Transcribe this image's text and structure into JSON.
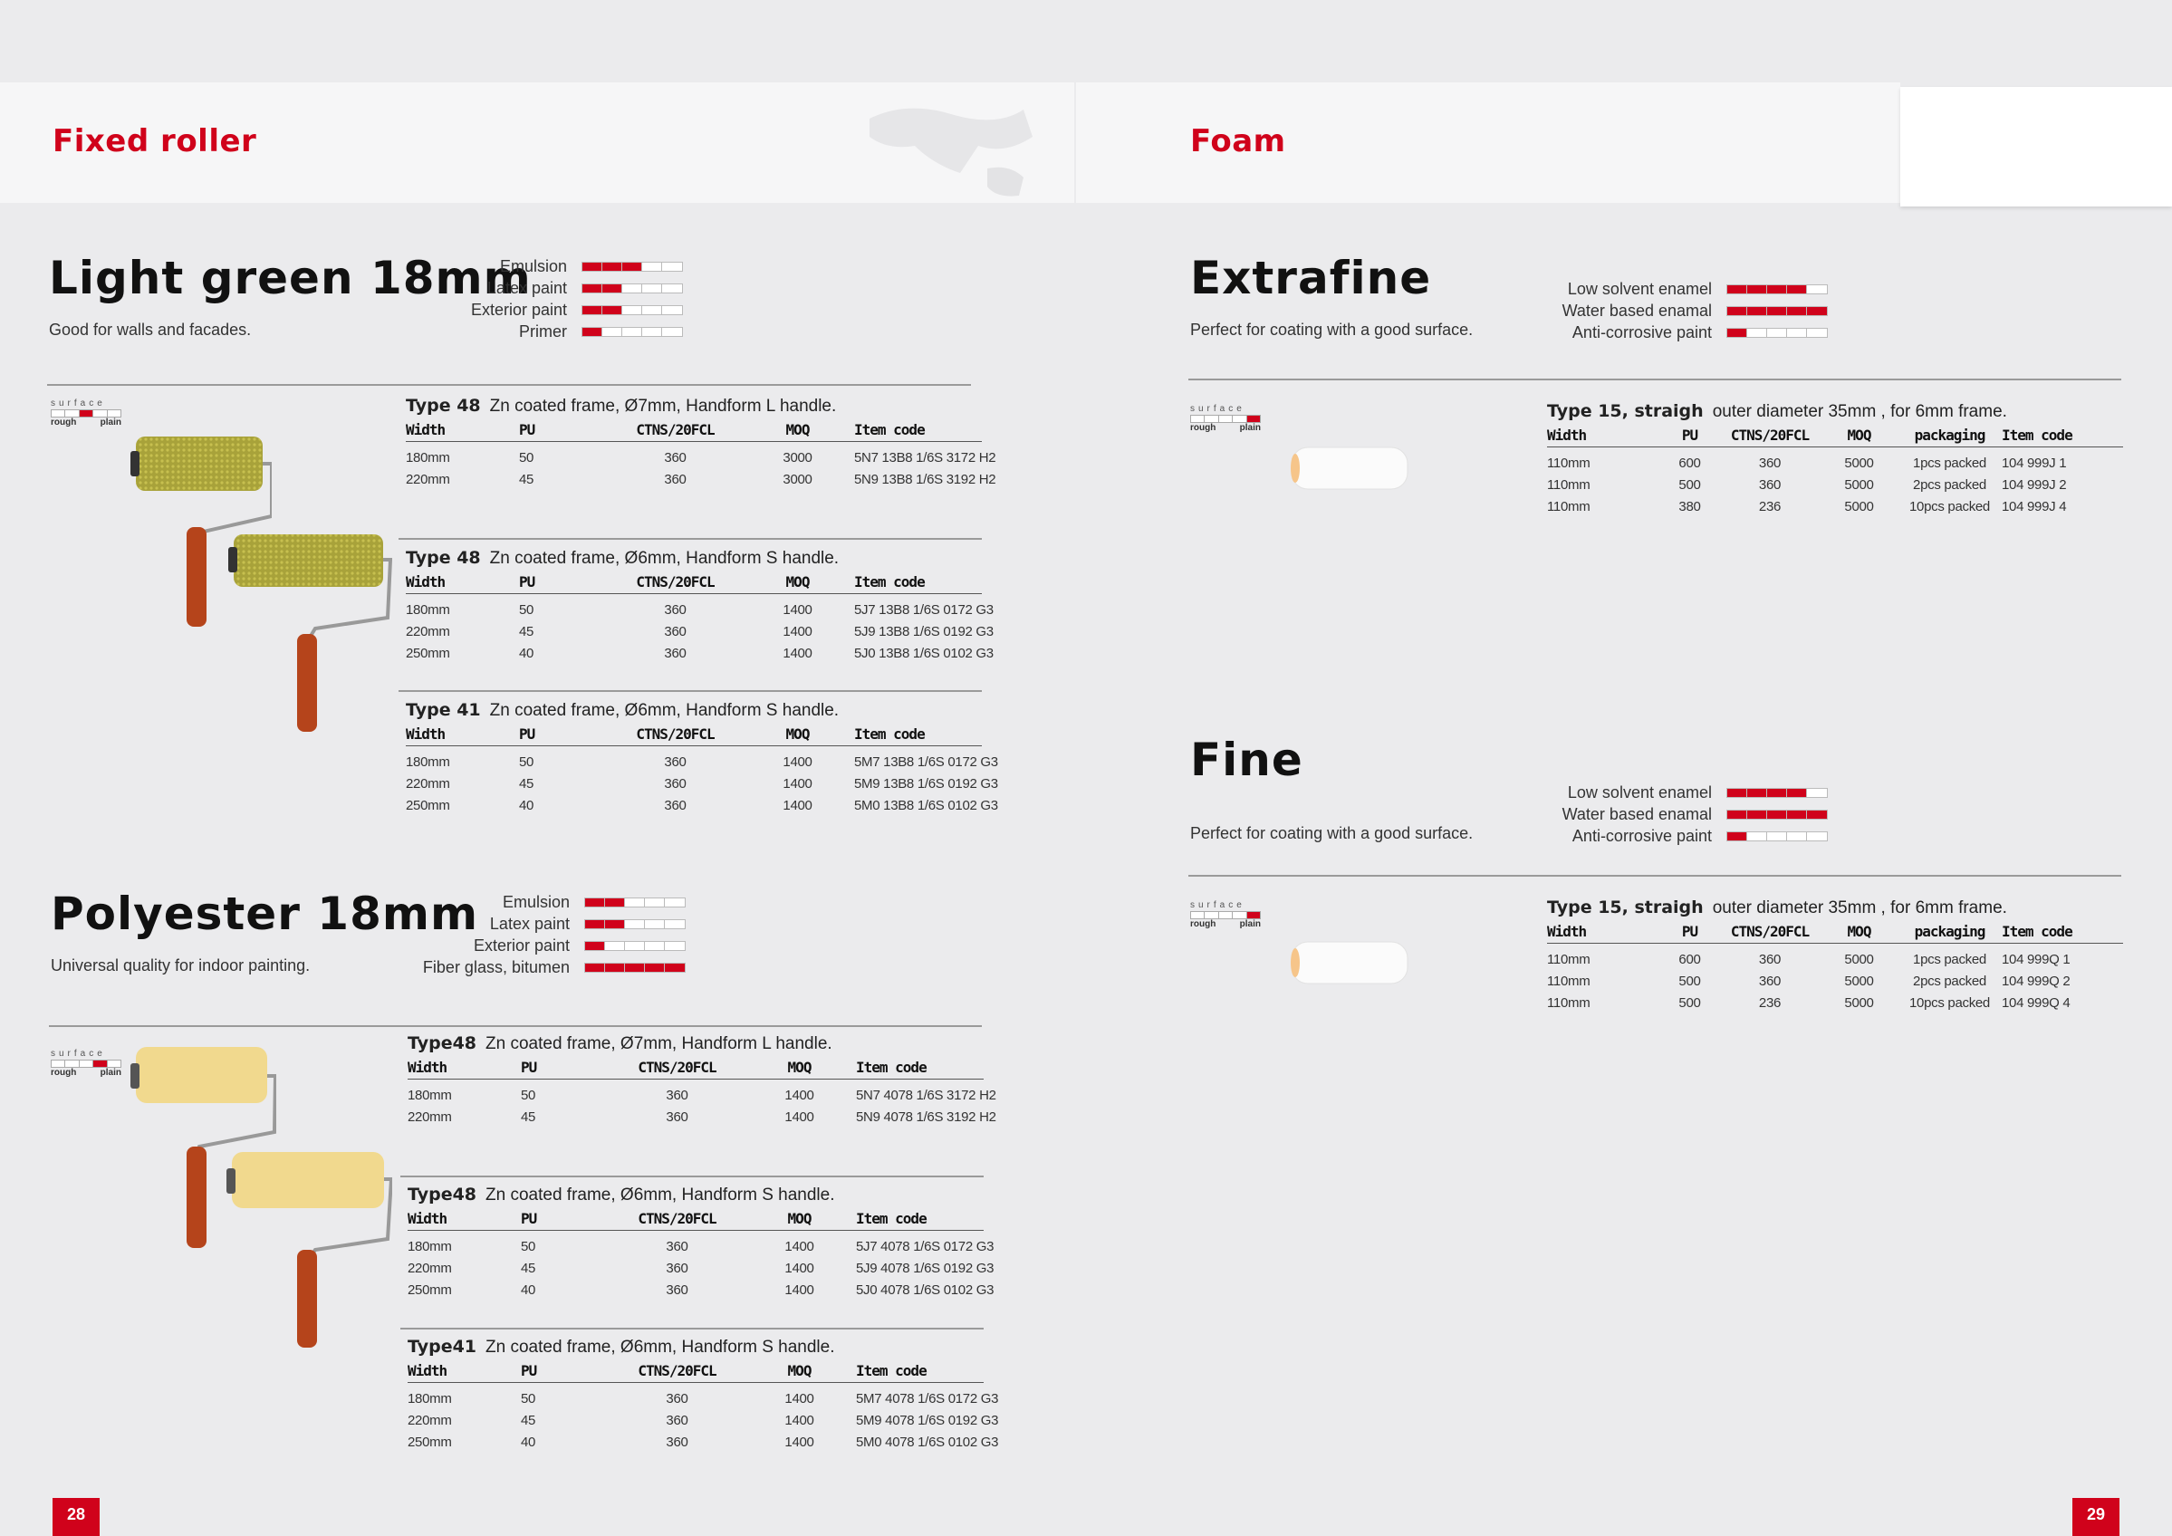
{
  "left_page": {
    "section": "Fixed roller",
    "page_number": "28",
    "products": [
      {
        "name": "Light green 18mm",
        "description": "Good for walls and facades.",
        "ratings": [
          {
            "label": "Emulsion",
            "level": 3
          },
          {
            "label": "Latex paint",
            "level": 2
          },
          {
            "label": "Exterior paint",
            "level": 2
          },
          {
            "label": "Primer",
            "level": 1
          }
        ],
        "surface": {
          "label": "surface",
          "rough": "rough",
          "plain": "plain",
          "level": 3
        },
        "tables": [
          {
            "type": "Type 48",
            "spec": "Zn coated frame, Ø7mm, Handform L handle.",
            "columns": [
              "Width",
              "PU",
              "CTNS/20FCL",
              "MOQ",
              "Item code"
            ],
            "rows": [
              [
                "180mm",
                "50",
                "360",
                "3000",
                "5N7 13B8 1/6S 3172 H2"
              ],
              [
                "220mm",
                "45",
                "360",
                "3000",
                "5N9 13B8 1/6S 3192 H2"
              ]
            ]
          },
          {
            "type": "Type 48",
            "spec": "Zn coated frame, Ø6mm, Handform S handle.",
            "columns": [
              "Width",
              "PU",
              "CTNS/20FCL",
              "MOQ",
              "Item code"
            ],
            "rows": [
              [
                "180mm",
                "50",
                "360",
                "1400",
                "5J7 13B8 1/6S 0172 G3"
              ],
              [
                "220mm",
                "45",
                "360",
                "1400",
                "5J9 13B8 1/6S 0192 G3"
              ],
              [
                "250mm",
                "40",
                "360",
                "1400",
                "5J0 13B8 1/6S 0102 G3"
              ]
            ]
          },
          {
            "type": "Type 41",
            "spec": "Zn coated frame, Ø6mm, Handform S handle.",
            "columns": [
              "Width",
              "PU",
              "CTNS/20FCL",
              "MOQ",
              "Item code"
            ],
            "rows": [
              [
                "180mm",
                "50",
                "360",
                "1400",
                "5M7 13B8 1/6S 0172 G3"
              ],
              [
                "220mm",
                "45",
                "360",
                "1400",
                "5M9 13B8 1/6S 0192 G3"
              ],
              [
                "250mm",
                "40",
                "360",
                "1400",
                "5M0 13B8 1/6S 0102 G3"
              ]
            ]
          }
        ]
      },
      {
        "name": "Polyester 18mm",
        "description": "Universal quality for indoor painting.",
        "ratings": [
          {
            "label": "Emulsion",
            "level": 2
          },
          {
            "label": "Latex paint",
            "level": 2
          },
          {
            "label": "Exterior paint",
            "level": 1
          },
          {
            "label": "Fiber glass, bitumen",
            "level": 5
          }
        ],
        "surface": {
          "label": "surface",
          "rough": "rough",
          "plain": "plain",
          "level": 4
        },
        "tables": [
          {
            "type": "Type48",
            "spec": "Zn coated frame, Ø7mm, Handform L handle.",
            "columns": [
              "Width",
              "PU",
              "CTNS/20FCL",
              "MOQ",
              "Item code"
            ],
            "rows": [
              [
                "180mm",
                "50",
                "360",
                "1400",
                "5N7 4078 1/6S 3172 H2"
              ],
              [
                "220mm",
                "45",
                "360",
                "1400",
                "5N9 4078 1/6S 3192 H2"
              ]
            ]
          },
          {
            "type": "Type48",
            "spec": "Zn coated frame, Ø6mm, Handform S handle.",
            "columns": [
              "Width",
              "PU",
              "CTNS/20FCL",
              "MOQ",
              "Item code"
            ],
            "rows": [
              [
                "180mm",
                "50",
                "360",
                "1400",
                "5J7 4078 1/6S 0172 G3"
              ],
              [
                "220mm",
                "45",
                "360",
                "1400",
                "5J9 4078 1/6S 0192 G3"
              ],
              [
                "250mm",
                "40",
                "360",
                "1400",
                "5J0 4078 1/6S 0102 G3"
              ]
            ]
          },
          {
            "type": "Type41",
            "spec": "Zn coated frame, Ø6mm, Handform S handle.",
            "columns": [
              "Width",
              "PU",
              "CTNS/20FCL",
              "MOQ",
              "Item code"
            ],
            "rows": [
              [
                "180mm",
                "50",
                "360",
                "1400",
                "5M7 4078 1/6S 0172 G3"
              ],
              [
                "220mm",
                "45",
                "360",
                "1400",
                "5M9 4078 1/6S 0192 G3"
              ],
              [
                "250mm",
                "40",
                "360",
                "1400",
                "5M0 4078 1/6S 0102 G3"
              ]
            ]
          }
        ]
      }
    ]
  },
  "right_page": {
    "section": "Foam",
    "page_number": "29",
    "products": [
      {
        "name": "Extrafine",
        "description": "Perfect for coating with a good surface.",
        "ratings": [
          {
            "label": "Low solvent enamel",
            "level": 4
          },
          {
            "label": "Water based enamal",
            "level": 5
          },
          {
            "label": "Anti-corrosive paint",
            "level": 1
          }
        ],
        "surface": {
          "label": "surface",
          "rough": "rough",
          "plain": "plain",
          "level": 5
        },
        "table": {
          "type": "Type 15, straigh",
          "spec": "outer diameter 35mm , for 6mm frame.",
          "columns": [
            "Width",
            "PU",
            "CTNS/20FCL",
            "MOQ",
            "packaging",
            "Item code"
          ],
          "rows": [
            [
              "110mm",
              "600",
              "360",
              "5000",
              "1pcs packed",
              "104 999J 1"
            ],
            [
              "110mm",
              "500",
              "360",
              "5000",
              "2pcs packed",
              "104 999J 2"
            ],
            [
              "110mm",
              "380",
              "236",
              "5000",
              "10pcs packed",
              "104 999J 4"
            ]
          ]
        }
      },
      {
        "name": "Fine",
        "description": "Perfect for coating with a good surface.",
        "ratings": [
          {
            "label": "Low solvent enamel",
            "level": 4
          },
          {
            "label": "Water based enamal",
            "level": 5
          },
          {
            "label": "Anti-corrosive paint",
            "level": 1
          }
        ],
        "surface": {
          "label": "surface",
          "rough": "rough",
          "plain": "plain",
          "level": 5
        },
        "table": {
          "type": "Type 15, straigh",
          "spec": "outer diameter 35mm , for 6mm frame.",
          "columns": [
            "Width",
            "PU",
            "CTNS/20FCL",
            "MOQ",
            "packaging",
            "Item code"
          ],
          "rows": [
            [
              "110mm",
              "600",
              "360",
              "5000",
              "1pcs packed",
              "104 999Q 1"
            ],
            [
              "110mm",
              "500",
              "360",
              "5000",
              "2pcs packed",
              "104 999Q 2"
            ],
            [
              "110mm",
              "500",
              "236",
              "5000",
              "10pcs packed",
              "104 999Q 4"
            ]
          ]
        }
      }
    ]
  },
  "colors": {
    "accent": "#d0021b",
    "background": "#ebebed",
    "band": "#f6f6f7"
  }
}
